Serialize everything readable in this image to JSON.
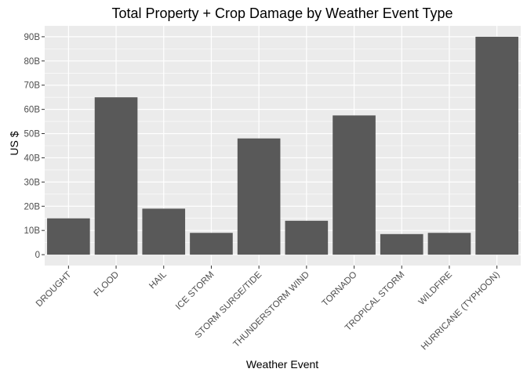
{
  "colors": {
    "panel_background": "#ebebeb",
    "grid_major": "#ffffff",
    "bar_fill": "#595959",
    "tick_text": "#4d4d4d",
    "text": "#000000"
  },
  "chart_data": {
    "type": "bar",
    "title": "Total Property + Crop Damage by Weather Event Type",
    "xlabel": "Weather Event",
    "ylabel": "US $",
    "categories": [
      "DROUGHT",
      "FLOOD",
      "HAIL",
      "ICE STORM",
      "STORM SURGE/TIDE",
      "THUNDERSTORM WIND",
      "TORNADO",
      "TROPICAL STORM",
      "WILDFIRE",
      "HURRICANE (TYPHOON)"
    ],
    "values": [
      15.0,
      65.0,
      19.0,
      9.0,
      48.0,
      14.0,
      57.5,
      8.5,
      9.0,
      90.0
    ],
    "value_unit": "billions of US $",
    "ylim": [
      -4.5,
      94.5
    ],
    "yticks": [
      0,
      10,
      20,
      30,
      40,
      50,
      60,
      70,
      80,
      90
    ],
    "ytick_labels": [
      "0",
      "10B",
      "20B",
      "30B",
      "40B",
      "50B",
      "60B",
      "70B",
      "80B",
      "90B"
    ],
    "grid": true,
    "legend": "none"
  }
}
